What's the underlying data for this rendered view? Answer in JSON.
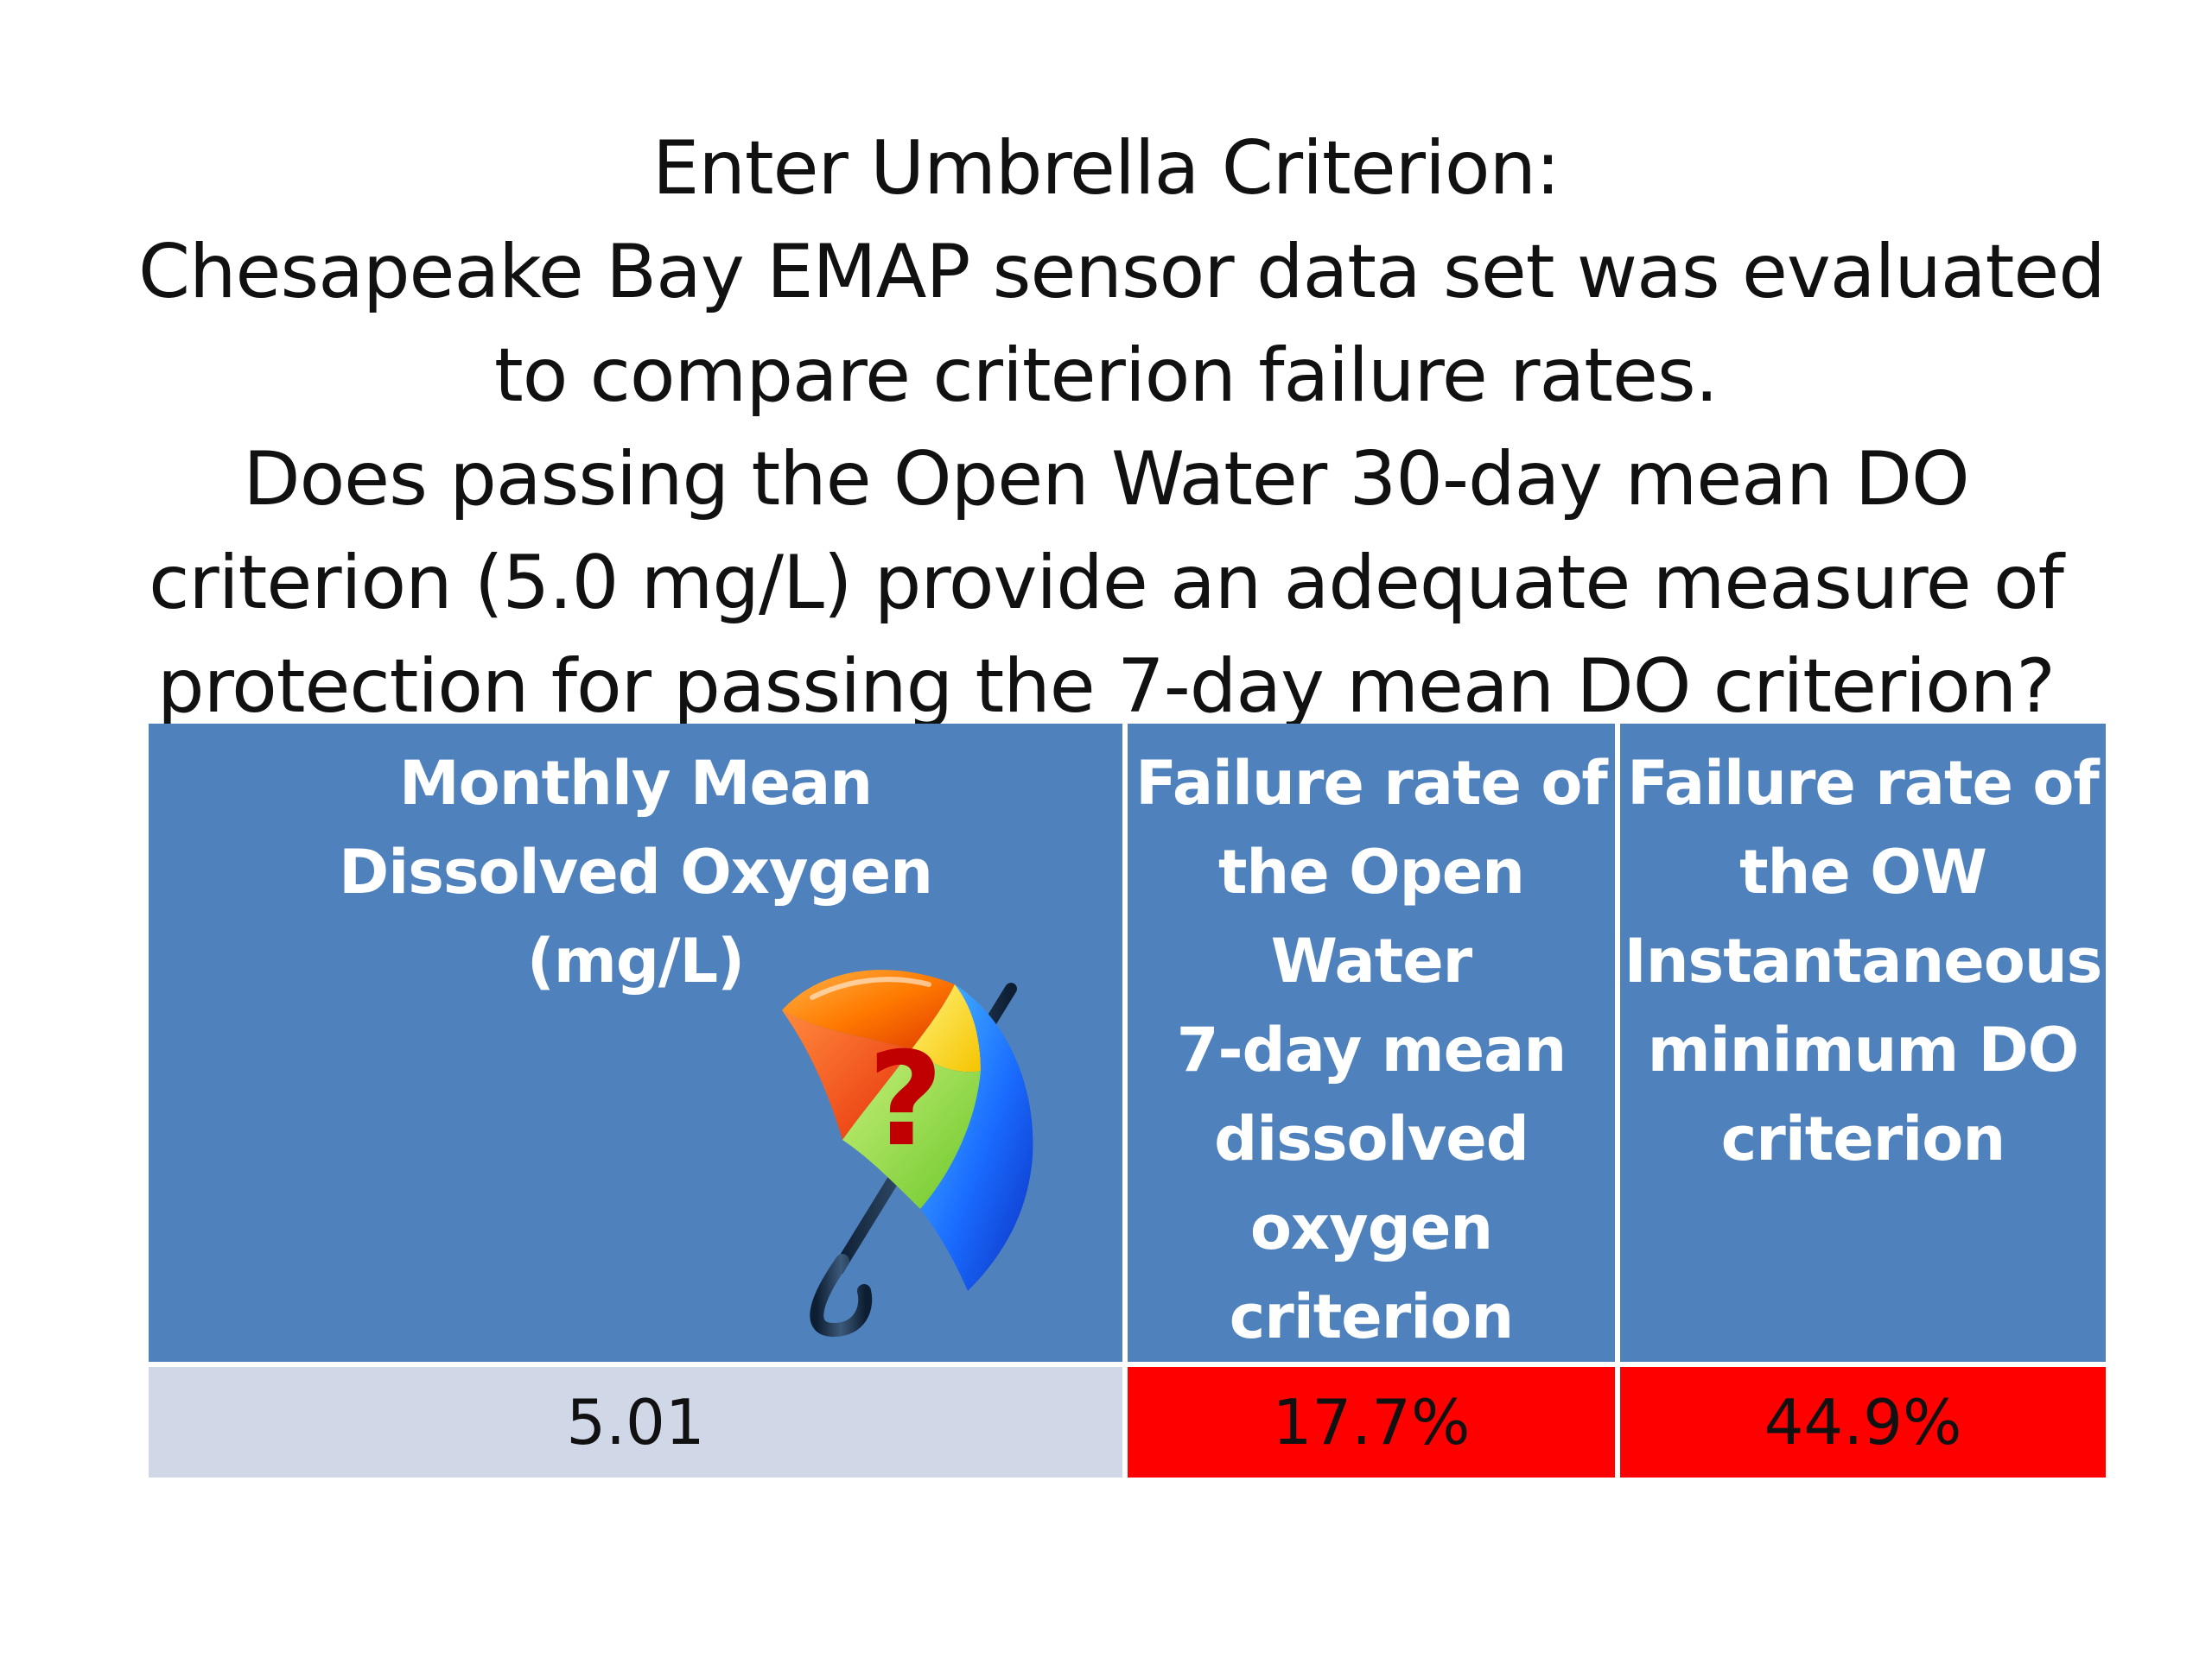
{
  "title_lines": [
    "Enter Umbrella Criterion:",
    "Chesapeake Bay EMAP sensor data set was evaluated",
    "to compare criterion failure rates.",
    "Does passing the Open Water 30-day mean DO",
    "criterion (5.0 mg/L) provide an adequate measure of",
    "protection for passing the 7-day mean DO criterion?"
  ],
  "table": {
    "headers": [
      [
        "Monthly Mean",
        "Dissolved Oxygen",
        "(mg/L)"
      ],
      [
        "Failure rate of",
        "the Open",
        "Water",
        "7-day mean",
        "dissolved",
        "oxygen",
        "criterion"
      ],
      [
        "Failure rate of",
        "the OW",
        "Instantaneous",
        "minimum DO",
        "criterion"
      ]
    ],
    "row": [
      "5.01",
      "17.7%",
      "44.9%"
    ]
  },
  "umbrella": {
    "icon": "umbrella-question-icon",
    "mark": "?"
  },
  "colors": {
    "header_bg": "#4f81bd",
    "value_bg": "#d0d8e8",
    "fail_bg": "#ff0000"
  }
}
